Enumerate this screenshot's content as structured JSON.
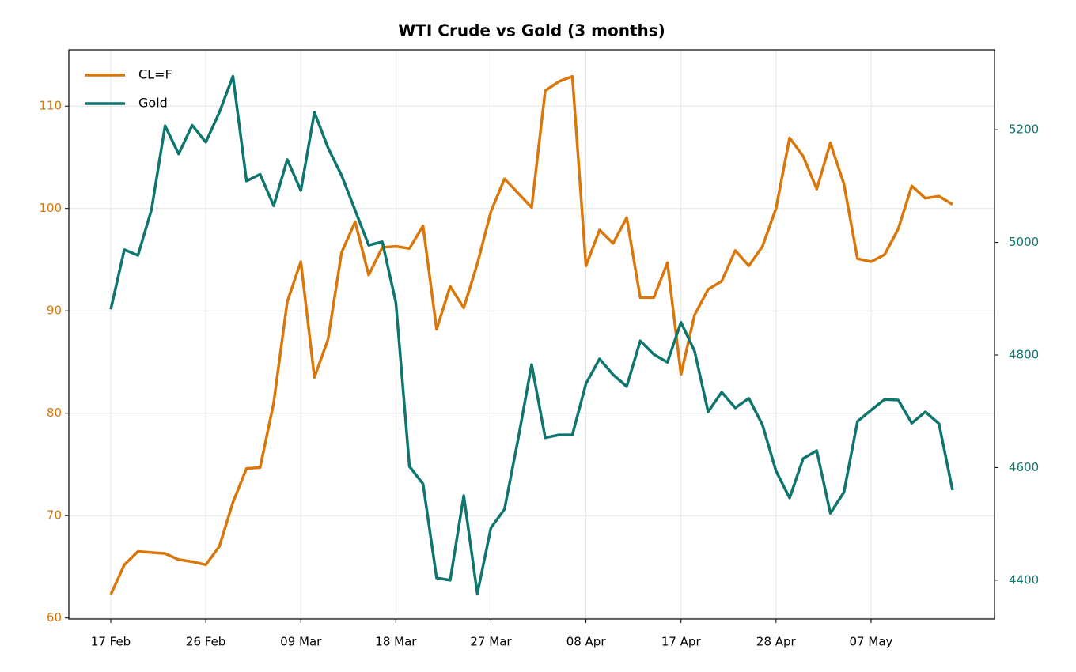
{
  "chart_data": {
    "type": "line",
    "title": "WTI Crude vs Gold (3 months)",
    "categories": [
      "17 Feb",
      null,
      null,
      null,
      null,
      null,
      null,
      "26 Feb",
      null,
      null,
      null,
      null,
      null,
      null,
      "09 Mar",
      null,
      null,
      null,
      null,
      null,
      null,
      "18 Mar",
      null,
      null,
      null,
      null,
      null,
      null,
      "27 Mar",
      null,
      null,
      null,
      null,
      null,
      null,
      "08 Apr",
      null,
      null,
      null,
      null,
      null,
      null,
      "17 Apr",
      null,
      null,
      null,
      null,
      null,
      null,
      "28 Apr",
      null,
      null,
      null,
      null,
      null,
      null,
      "07 May",
      null,
      null,
      null,
      null,
      null,
      null
    ],
    "series": [
      {
        "name": "CL=F",
        "color": "#d9770b",
        "axis": "y",
        "values": [
          62.3,
          65.2,
          66.5,
          66.4,
          66.3,
          65.7,
          65.5,
          65.2,
          67.0,
          71.3,
          74.6,
          74.7,
          81.0,
          90.9,
          94.8,
          83.5,
          87.2,
          95.7,
          98.7,
          93.5,
          96.2,
          96.3,
          96.1,
          98.3,
          88.2,
          92.4,
          90.3,
          94.6,
          99.7,
          102.9,
          101.5,
          100.1,
          111.5,
          112.4,
          112.9,
          94.4,
          97.9,
          96.6,
          99.1,
          91.3,
          91.3,
          94.7,
          83.8,
          89.6,
          92.1,
          92.9,
          95.9,
          94.4,
          96.3,
          100.0,
          106.9,
          105.1,
          101.9,
          106.4,
          102.4,
          95.1,
          94.8,
          95.5,
          98.0,
          102.2,
          101.0,
          101.2,
          100.4
        ]
      },
      {
        "name": "Gold",
        "color": "#0f766e",
        "axis": "y2",
        "values": [
          4881,
          4987,
          4977,
          5058,
          5207,
          5157,
          5208,
          5178,
          5231,
          5295,
          5109,
          5121,
          5065,
          5147,
          5092,
          5231,
          5168,
          5119,
          5057,
          4995,
          5001,
          4893,
          4602,
          4571,
          4404,
          4400,
          4550,
          4376,
          4493,
          4526,
          4650,
          4783,
          4653,
          4658,
          4658,
          4749,
          4793,
          4765,
          4744,
          4825,
          4801,
          4787,
          4858,
          4807,
          4699,
          4734,
          4706,
          4723,
          4676,
          4594,
          4546,
          4616,
          4630,
          4519,
          4556,
          4682,
          4702,
          4721,
          4720,
          4679,
          4699,
          4678,
          4560
        ]
      }
    ],
    "ylim": [
      59.9,
      115.5
    ],
    "yticks": [
      60,
      70,
      80,
      90,
      100,
      110
    ],
    "y2lim": [
      4331,
      5342
    ],
    "y2ticks": [
      4400,
      4600,
      4800,
      5000,
      5200
    ],
    "grid": true,
    "legend": "upper-left"
  }
}
